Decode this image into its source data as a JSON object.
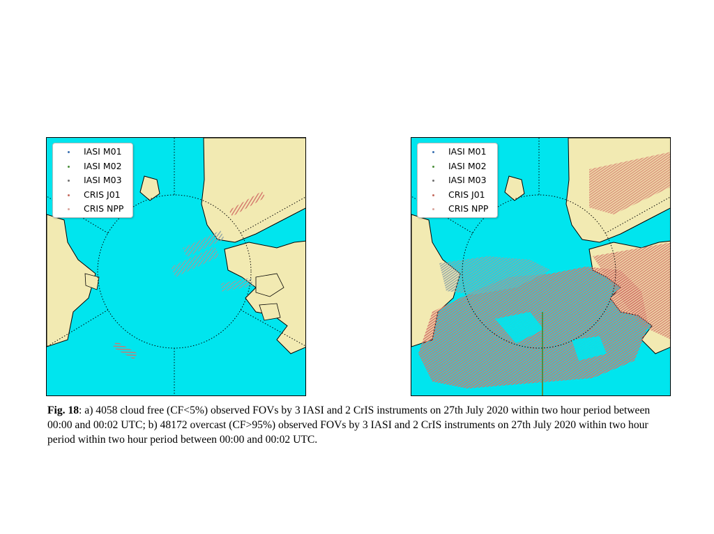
{
  "figure": {
    "panels": [
      {
        "id": "a",
        "legend": [
          {
            "label": "IASI M01",
            "color": "#3a6fb0"
          },
          {
            "label": "IASI M02",
            "color": "#4a8f3a"
          },
          {
            "label": "IASI M03",
            "color": "#6f6f6f"
          },
          {
            "label": "CRIS J01",
            "color": "#c46a5e"
          },
          {
            "label": "CRIS NPP",
            "color": "#d9a39b"
          }
        ]
      },
      {
        "id": "b",
        "legend": [
          {
            "label": "IASI M01",
            "color": "#3a6fb0"
          },
          {
            "label": "IASI M02",
            "color": "#4a8f3a"
          },
          {
            "label": "IASI M03",
            "color": "#6f6f6f"
          },
          {
            "label": "CRIS J01",
            "color": "#c46a5e"
          },
          {
            "label": "CRIS NPP",
            "color": "#d9a39b"
          }
        ]
      }
    ],
    "colors": {
      "ocean": "#00e5ee",
      "land": "#f2eab2",
      "coast": "#000000",
      "obs_red": "#d4756b",
      "obs_grey": "#8fa4a6",
      "obs_green": "#4f8f46"
    },
    "caption": {
      "label": "Fig. 18",
      "text": ": a) 4058 cloud free (CF<5%) observed FOVs by 3 IASI and 2 CrIS instruments on 27th July 2020 within two hour period between 00:00 and 00:02 UTC; b) 48172 overcast (CF>95%) observed FOVs by 3 IASI and 2 CrIS instruments on 27th July 2020 within two hour period within two hour period between 00:00 and 00:02 UTC."
    }
  }
}
